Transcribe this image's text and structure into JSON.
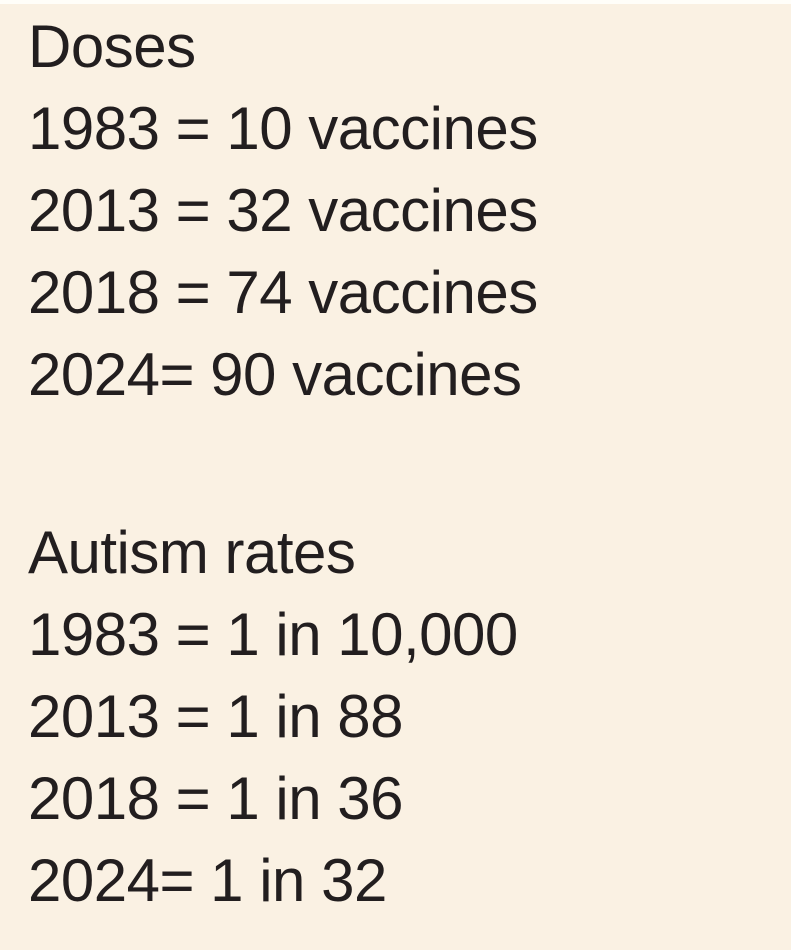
{
  "theme": {
    "bg": "#faf1e3",
    "text": "#221e1f",
    "topstrip": "#fffef9"
  },
  "sections": [
    {
      "title": "Doses",
      "lines": [
        "1983 = 10 vaccines",
        "2013 = 32 vaccines",
        "2018 = 74 vaccines",
        "2024= 90 vaccines"
      ]
    },
    {
      "title": "Autism rates",
      "lines": [
        "1983 = 1 in 10,000",
        "2013 = 1 in 88",
        "2018 = 1 in 36",
        "2024= 1 in 32"
      ]
    }
  ]
}
